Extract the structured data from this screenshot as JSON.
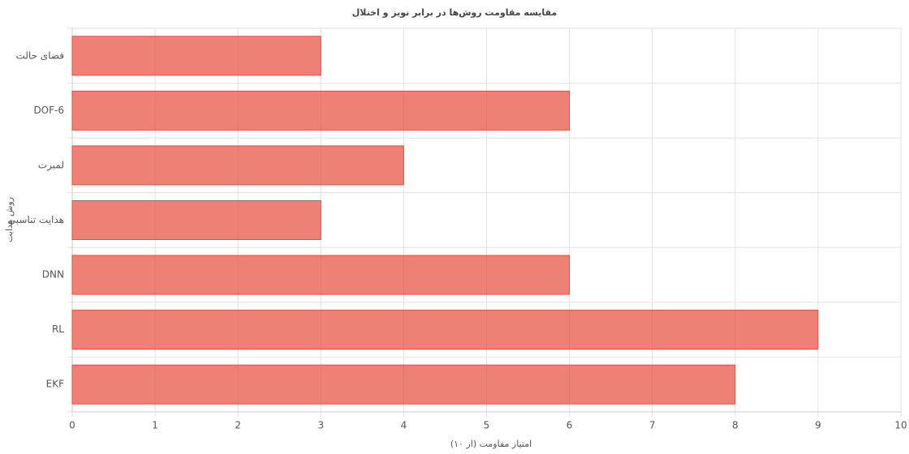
{
  "chart_data": {
    "type": "hbar",
    "title": "مقایسه مقاومت روش‌ها در برابر نویز و اختلال",
    "x_label": "امتیاز مقاومت (از ۱۰)",
    "y_label": "روش هدایت",
    "categories": [
      "فضای حالت",
      "DOF-6",
      "لمبرت",
      "هدایت تناسبی",
      "DNN",
      "RL",
      "EKF"
    ],
    "values": [
      3,
      6,
      4,
      3,
      6,
      9,
      8
    ],
    "color": "#e74c3c",
    "xlim": [
      0,
      10
    ],
    "xticks": [
      0,
      1,
      2,
      3,
      4,
      5,
      6,
      7,
      8,
      9,
      10
    ],
    "grid": true
  }
}
